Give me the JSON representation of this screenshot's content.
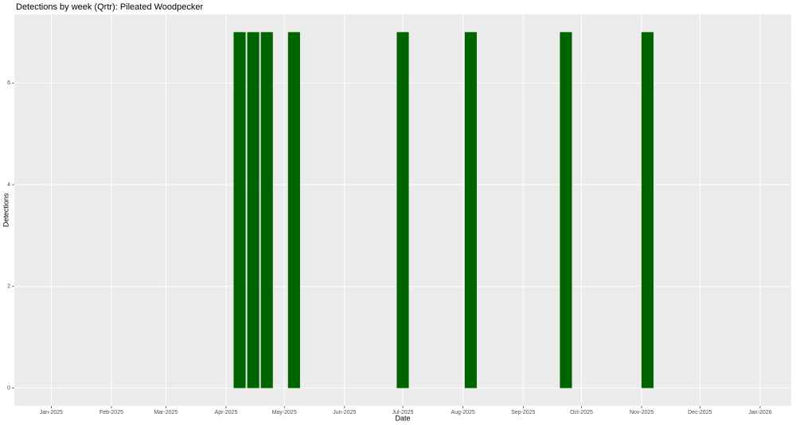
{
  "chart_data": {
    "type": "bar",
    "title": "Detections by week (Qrtr): Pileated Woodpecker",
    "x_label": "Date",
    "y_label": "Detections",
    "x": [
      "2025-04-08",
      "2025-04-15",
      "2025-04-22",
      "2025-05-06",
      "2025-07-01",
      "2025-08-05",
      "2025-09-23",
      "2025-11-04"
    ],
    "values": [
      7,
      7,
      7,
      7,
      7,
      7,
      7,
      7
    ],
    "color": "#006400",
    "xlim": [
      "2024-12-13",
      "2026-01-17"
    ],
    "xticks": [
      {
        "value": "2025-01-01",
        "label": "Jan-2025"
      },
      {
        "value": "2025-02-01",
        "label": "Feb-2025"
      },
      {
        "value": "2025-03-01",
        "label": "Mar-2025"
      },
      {
        "value": "2025-04-01",
        "label": "Apr-2025"
      },
      {
        "value": "2025-05-01",
        "label": "May-2025"
      },
      {
        "value": "2025-06-01",
        "label": "Jun-2025"
      },
      {
        "value": "2025-07-01",
        "label": "Jul-2025"
      },
      {
        "value": "2025-08-01",
        "label": "Aug-2025"
      },
      {
        "value": "2025-09-01",
        "label": "Sep-2025"
      },
      {
        "value": "2025-10-01",
        "label": "Oct-2025"
      },
      {
        "value": "2025-11-01",
        "label": "Nov-2025"
      },
      {
        "value": "2025-12-01",
        "label": "Dec-2025"
      },
      {
        "value": "2026-01-01",
        "label": "Jan-2026"
      }
    ],
    "ylim": [
      -0.35,
      7.35
    ],
    "yticks": [
      0,
      2,
      4,
      6
    ],
    "grid": true
  }
}
